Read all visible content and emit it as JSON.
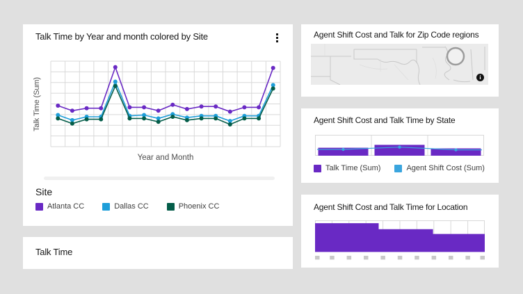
{
  "page": {
    "background": "#e0e0e0",
    "card_background": "#ffffff",
    "accent_purple": "#6929c4"
  },
  "cards": {
    "line_card": {
      "title": "Talk Time by Year and month colored by Site",
      "menu_icon": "kebab-menu-icon"
    },
    "talk_time_card": {
      "title": "Talk Time"
    },
    "map_card": {
      "title": "Agent Shift Cost and Talk for Zip Code regions",
      "info_icon_label": "i",
      "map": {
        "base_color": "#ebebeb",
        "border_color": "#c8c8c8",
        "marker": {
          "shape": "circle-outline",
          "color": "#9b9b9b"
        }
      }
    },
    "state_card": {
      "title": "Agent Shift Cost and Talk Time by State"
    },
    "location_card": {
      "title": "Agent Shift Cost and Talk Time for Location"
    }
  },
  "chart_data": [
    {
      "id": "talk-time-by-year-and-month",
      "type": "line",
      "title": "Talk Time by Year and month colored by Site",
      "xlabel": "Year and Month",
      "ylabel": "Talk Time (Sum)",
      "x_count": 16,
      "x_tick_labels_visible": false,
      "y_tick_labels_visible": false,
      "grid": true,
      "value_scale": "percent-of-plot-height",
      "ylim": [
        0,
        100
      ],
      "legend_title": "Site",
      "legend_position": "bottom",
      "series": [
        {
          "name": "Atlanta CC",
          "color": "#6929c4",
          "values": [
            48,
            42,
            45,
            45,
            93,
            46,
            46,
            42,
            49,
            44,
            47,
            47,
            41,
            46,
            46,
            92
          ]
        },
        {
          "name": "Dallas CC",
          "color": "#1e9ed9",
          "values": [
            37,
            31,
            35,
            35,
            76,
            36,
            37,
            33,
            38,
            34,
            36,
            36,
            30,
            36,
            36,
            72
          ]
        },
        {
          "name": "Phoenix CC",
          "color": "#045d49",
          "values": [
            33,
            27,
            32,
            32,
            71,
            33,
            33,
            29,
            35,
            31,
            33,
            33,
            26,
            33,
            33,
            68
          ]
        }
      ]
    },
    {
      "id": "agent-shift-cost-and-talk-time-by-state",
      "type": "bar+line",
      "title": "Agent Shift Cost and Talk Time by State",
      "categories": [
        "",
        "",
        ""
      ],
      "x_tick_labels_visible": false,
      "y_tick_labels_visible": false,
      "value_scale": "percent-of-plot-height",
      "ylim": [
        0,
        100
      ],
      "legend_position": "bottom",
      "series": [
        {
          "name": "Talk Time (Sum)",
          "type": "bar",
          "color": "#6929c4",
          "values": [
            38,
            52,
            35
          ]
        },
        {
          "name": "Agent Shift Cost (Sum)",
          "type": "line",
          "color": "#3aa5de",
          "values": [
            30,
            41,
            28
          ]
        }
      ]
    },
    {
      "id": "agent-shift-cost-and-talk-time-for-location",
      "type": "bar",
      "title": "Agent Shift Cost and Talk Time for Location",
      "bar_color": "#6929c4",
      "x_tick_labels_visible": false,
      "x_tick_placeholder_squares": 11,
      "value_scale": "percent-of-plot-height",
      "segments": [
        {
          "width_pct": 37.5,
          "height_pct": 91
        },
        {
          "width_pct": 32.0,
          "height_pct": 72
        },
        {
          "width_pct": 30.5,
          "height_pct": 57
        }
      ]
    }
  ]
}
